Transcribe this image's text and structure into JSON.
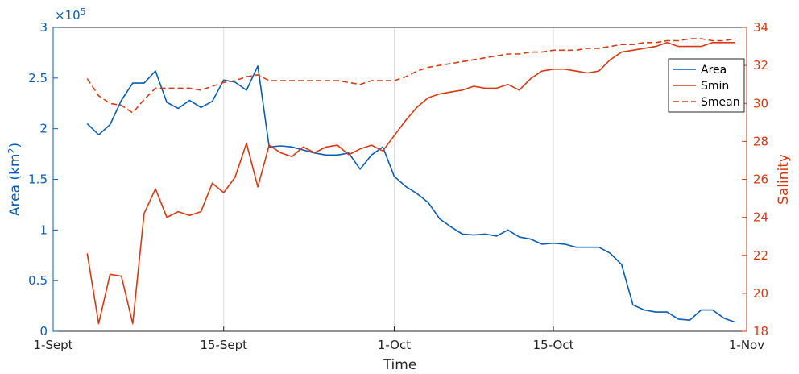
{
  "chart_data": {
    "type": "line",
    "xlabel": "Time",
    "ylabel_left_base": "Area (km",
    "ylabel_left_sup": "2",
    "ylabel_left_close": ")",
    "ylabel_right": "Salinity",
    "y_left_multiplier_base": "×10",
    "y_left_multiplier_exp": "5",
    "xlim": [
      0,
      61
    ],
    "ylim_left": [
      0,
      3
    ],
    "ylim_right": [
      18,
      34
    ],
    "x_ticks": [
      {
        "x": 0,
        "label": "1-Sept"
      },
      {
        "x": 15,
        "label": "15-Sept"
      },
      {
        "x": 30,
        "label": "1-Oct"
      },
      {
        "x": 44,
        "label": "15-Oct"
      },
      {
        "x": 61,
        "label": "1-Nov"
      }
    ],
    "y_left_ticks": [
      "0",
      "0.5",
      "1",
      "1.5",
      "2",
      "2.5",
      "3"
    ],
    "y_right_ticks": [
      "18",
      "20",
      "22",
      "24",
      "26",
      "28",
      "30",
      "32",
      "34"
    ],
    "grid_x": true,
    "legend_position": "top-right",
    "colors": {
      "area": "#0a5db3",
      "salinity": "#d63a12",
      "grid": "#dcdcdc"
    },
    "series": [
      {
        "name": "Area",
        "axis": "left",
        "style": "solid",
        "x": [
          3,
          4,
          5,
          6,
          7,
          8,
          9,
          10,
          11,
          12,
          13,
          14,
          15,
          16,
          17,
          18,
          19,
          20,
          21,
          22,
          23,
          24,
          25,
          26,
          27,
          28,
          29,
          30,
          31,
          32,
          33,
          34,
          35,
          36,
          37,
          38,
          39,
          40,
          41,
          42,
          43,
          44,
          45,
          46,
          47,
          48,
          49,
          50,
          51,
          52,
          53,
          54,
          55,
          56,
          57,
          58,
          59,
          60
        ],
        "values": [
          2.05,
          1.94,
          2.04,
          2.28,
          2.45,
          2.45,
          2.57,
          2.26,
          2.2,
          2.28,
          2.21,
          2.27,
          2.48,
          2.46,
          2.38,
          2.62,
          1.82,
          1.83,
          1.82,
          1.79,
          1.76,
          1.74,
          1.74,
          1.76,
          1.6,
          1.74,
          1.82,
          1.53,
          1.43,
          1.36,
          1.27,
          1.11,
          1.03,
          0.96,
          0.95,
          0.96,
          0.94,
          1.0,
          0.93,
          0.91,
          0.86,
          0.87,
          0.86,
          0.83,
          0.83,
          0.83,
          0.77,
          0.66,
          0.26,
          0.21,
          0.19,
          0.19,
          0.12,
          0.11,
          0.21,
          0.21,
          0.13,
          0.09
        ]
      },
      {
        "name": "Smin",
        "axis": "right",
        "style": "solid",
        "x": [
          3,
          4,
          5,
          6,
          7,
          8,
          9,
          10,
          11,
          12,
          13,
          14,
          15,
          16,
          17,
          18,
          19,
          20,
          21,
          22,
          23,
          24,
          25,
          26,
          27,
          28,
          29,
          30,
          31,
          32,
          33,
          34,
          35,
          36,
          37,
          38,
          39,
          40,
          41,
          42,
          43,
          44,
          45,
          46,
          47,
          48,
          49,
          50,
          51,
          52,
          53,
          54,
          55,
          56,
          57,
          58,
          59,
          60
        ],
        "values": [
          22.1,
          18.4,
          21.0,
          20.9,
          18.4,
          24.2,
          25.5,
          24.0,
          24.3,
          24.1,
          24.3,
          25.8,
          25.3,
          26.1,
          27.9,
          25.6,
          27.8,
          27.4,
          27.2,
          27.7,
          27.4,
          27.7,
          27.8,
          27.3,
          27.6,
          27.8,
          27.5,
          28.3,
          29.1,
          29.8,
          30.3,
          30.5,
          30.6,
          30.7,
          30.9,
          30.8,
          30.8,
          31.0,
          30.7,
          31.3,
          31.7,
          31.8,
          31.8,
          31.7,
          31.6,
          31.7,
          32.3,
          32.7,
          32.8,
          32.9,
          33.0,
          33.2,
          33.0,
          33.0,
          33.0,
          33.2,
          33.2,
          33.2
        ]
      },
      {
        "name": "Smean",
        "axis": "right",
        "style": "dashed",
        "x": [
          3,
          4,
          5,
          6,
          7,
          8,
          9,
          10,
          11,
          12,
          13,
          14,
          15,
          16,
          17,
          18,
          19,
          20,
          21,
          22,
          23,
          24,
          25,
          26,
          27,
          28,
          29,
          30,
          31,
          32,
          33,
          34,
          35,
          36,
          37,
          38,
          39,
          40,
          41,
          42,
          43,
          44,
          45,
          46,
          47,
          48,
          49,
          50,
          51,
          52,
          53,
          54,
          55,
          56,
          57,
          58,
          59,
          60
        ],
        "values": [
          31.3,
          30.4,
          30.0,
          29.9,
          29.5,
          30.2,
          30.8,
          30.8,
          30.8,
          30.8,
          30.7,
          30.9,
          31.1,
          31.2,
          31.4,
          31.5,
          31.2,
          31.2,
          31.2,
          31.2,
          31.2,
          31.2,
          31.2,
          31.1,
          31.0,
          31.2,
          31.2,
          31.2,
          31.4,
          31.7,
          31.9,
          32.0,
          32.1,
          32.2,
          32.3,
          32.4,
          32.5,
          32.6,
          32.6,
          32.7,
          32.7,
          32.8,
          32.8,
          32.8,
          32.9,
          32.9,
          33.0,
          33.1,
          33.1,
          33.2,
          33.2,
          33.3,
          33.3,
          33.4,
          33.4,
          33.3,
          33.3,
          33.4
        ]
      }
    ]
  }
}
